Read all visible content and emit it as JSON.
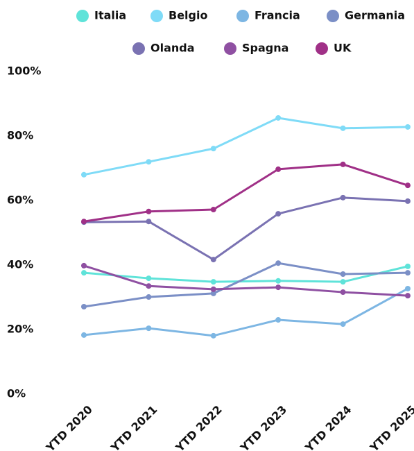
{
  "chart_data": {
    "type": "line",
    "categories": [
      "YTD 2020",
      "YTD 2021",
      "YTD 2022",
      "YTD 2023",
      "YTD 2024",
      "YTD 2025"
    ],
    "series": [
      {
        "name": "Italia",
        "color": "#5fe3d9",
        "values": [
          37.6,
          35.9,
          34.8,
          35.1,
          34.8,
          39.6
        ]
      },
      {
        "name": "Belgio",
        "color": "#7fdbf7",
        "values": [
          68.0,
          72.0,
          76.1,
          85.6,
          82.4,
          82.8
        ]
      },
      {
        "name": "Francia",
        "color": "#7db6e3",
        "values": [
          18.3,
          20.4,
          18.1,
          23.0,
          21.7,
          32.7
        ]
      },
      {
        "name": "Germania",
        "color": "#7b8fc6",
        "values": [
          27.1,
          30.1,
          31.2,
          40.6,
          37.2,
          37.6
        ]
      },
      {
        "name": "Olanda",
        "color": "#7a72b2",
        "values": [
          53.3,
          53.5,
          41.7,
          55.9,
          60.9,
          59.8
        ]
      },
      {
        "name": "Spagna",
        "color": "#8f50a2",
        "values": [
          39.8,
          33.5,
          32.5,
          33.1,
          31.6,
          30.5
        ]
      },
      {
        "name": "UK",
        "color": "#a03087",
        "values": [
          53.5,
          56.6,
          57.2,
          69.7,
          71.2,
          64.7
        ]
      }
    ],
    "ylim": [
      0,
      100
    ],
    "yticks": [
      {
        "value": 0,
        "label": "0%"
      },
      {
        "value": 20,
        "label": "20%"
      },
      {
        "value": 40,
        "label": "40%"
      },
      {
        "value": 60,
        "label": "60%"
      },
      {
        "value": 80,
        "label": "80%"
      },
      {
        "value": 100,
        "label": "100%"
      }
    ],
    "grid": false,
    "legend": "top"
  }
}
